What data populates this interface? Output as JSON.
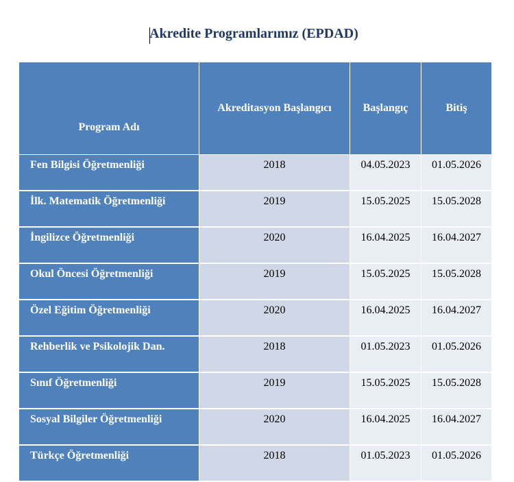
{
  "title": "Akredite Programlarımız (EPDAD)",
  "table": {
    "headers": [
      "Program Adı",
      "Akreditasyon Başlangıcı",
      "Başlangıç",
      "Bitiş"
    ],
    "rows": [
      {
        "program": "Fen Bilgisi Öğretmenliği",
        "year": "2018",
        "start": "04.05.2023",
        "end": "01.05.2026"
      },
      {
        "program": "İlk. Matematik Öğretmenliği",
        "year": "2019",
        "start": "15.05.2025",
        "end": "15.05.2028"
      },
      {
        "program": "İngilizce Öğretmenliği",
        "year": "2020",
        "start": "16.04.2025",
        "end": "16.04.2027"
      },
      {
        "program": "Okul Öncesi Öğretmenliği",
        "year": "2019",
        "start": "15.05.2025",
        "end": "15.05.2028"
      },
      {
        "program": "Özel Eğitim Öğretmenliği",
        "year": "2020",
        "start": "16.04.2025",
        "end": "16.04.2027"
      },
      {
        "program": "Rehberlik ve Psikolojik Dan.",
        "year": "2018",
        "start": "01.05.2023",
        "end": "01.05.2026"
      },
      {
        "program": "Sınıf Öğretmenliği",
        "year": "2019",
        "start": "15.05.2025",
        "end": "15.05.2028"
      },
      {
        "program": "Sosyal Bilgiler Öğretmenliği",
        "year": "2020",
        "start": "16.04.2025",
        "end": "16.04.2027"
      },
      {
        "program": "Türkçe Öğretmenliği",
        "year": "2018",
        "start": "01.05.2023",
        "end": "01.05.2026"
      }
    ]
  },
  "colors": {
    "header_bg": "#4f81bd",
    "year_cell_bg": "#d0d8e8",
    "date_cell_bg": "#e9edf4",
    "title_color": "#1f3864"
  }
}
